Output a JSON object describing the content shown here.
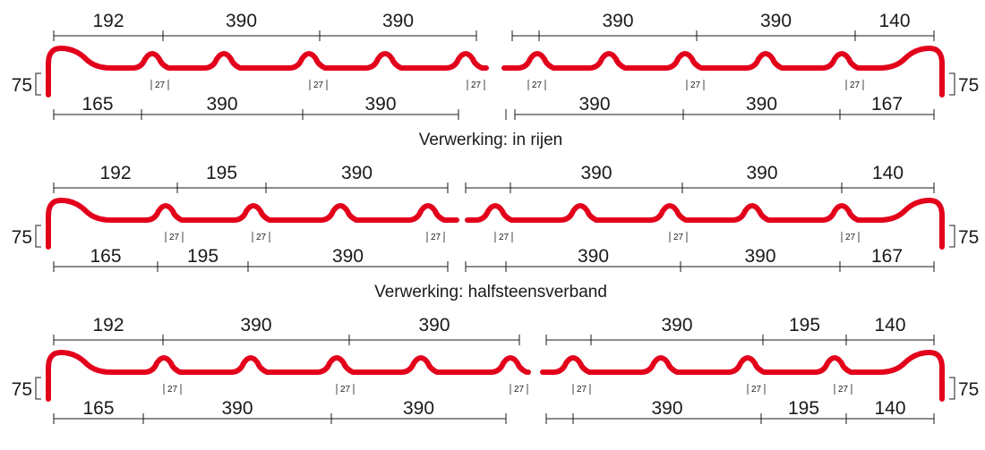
{
  "rows": [
    {
      "top_left": [
        "192",
        "390",
        "390"
      ],
      "top_right": [
        "390",
        "390",
        "140"
      ],
      "bottom_left": [
        "165",
        "390",
        "390"
      ],
      "bottom_right": [
        "390",
        "390",
        "167"
      ],
      "joints_left": [
        "27",
        "27",
        "27"
      ],
      "joints_right": [
        "27",
        "27",
        "27"
      ],
      "height_left": "75",
      "height_right": "75"
    },
    {
      "top_left": [
        "192",
        "195",
        "390"
      ],
      "top_right": [
        "390",
        "390",
        "140"
      ],
      "bottom_left": [
        "165",
        "195",
        "390"
      ],
      "bottom_right": [
        "390",
        "390",
        "167"
      ],
      "joints_left": [
        "27",
        "27",
        "27"
      ],
      "joints_right": [
        "27",
        "27",
        "27"
      ],
      "height_left": "75",
      "height_right": "75"
    },
    {
      "top_left": [
        "192",
        "390",
        "390"
      ],
      "top_right": [
        "390",
        "195",
        "140"
      ],
      "bottom_left": [
        "165",
        "390",
        "390"
      ],
      "bottom_right": [
        "390",
        "195",
        "140"
      ],
      "joints_left": [
        "27",
        "27",
        "27"
      ],
      "joints_right": [
        "27",
        "27",
        "27"
      ],
      "height_left": "75",
      "height_right": "75"
    }
  ],
  "captions": [
    "Verwerking: in rijen",
    "Verwerking: halfsteensverband"
  ],
  "colors": {
    "profile": "#e3001b",
    "lines": "#1a1a1a"
  }
}
